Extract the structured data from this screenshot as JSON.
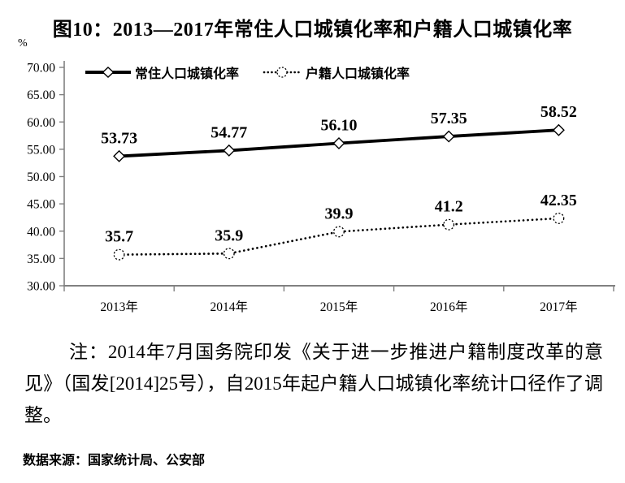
{
  "figure": {
    "note": "注：2014年7月国务院印发《关于进一步推进户籍制度改革的意见》（国发[2014]25号），自2015年起户籍人口城镇化率统计口径作了调整。",
    "source": "数据来源：国家统计局、公安部"
  },
  "chart_data": {
    "type": "line",
    "title": "图10：2013—2017年常住人口城镇化率和户籍人口城镇化率",
    "categories": [
      "2013年",
      "2014年",
      "2015年",
      "2016年",
      "2017年"
    ],
    "series": [
      {
        "name": "常住人口城镇化率",
        "values": [
          53.73,
          54.77,
          56.1,
          57.35,
          58.52
        ],
        "labels": [
          "53.73",
          "54.77",
          "56.10",
          "57.35",
          "58.52"
        ],
        "line_style": "solid",
        "marker": "diamond",
        "color": "#000000"
      },
      {
        "name": "户籍人口城镇化率",
        "values": [
          35.7,
          35.9,
          39.9,
          41.2,
          42.35
        ],
        "labels": [
          "35.7",
          "35.9",
          "39.9",
          "41.2",
          "42.35"
        ],
        "line_style": "dotted",
        "marker": "circle",
        "color": "#000000"
      }
    ],
    "xlabel": "",
    "ylabel": "%",
    "ylim": [
      30,
      70
    ],
    "ytick_step": 5,
    "ytick_labels": [
      "30.00",
      "35.00",
      "40.00",
      "45.00",
      "50.00",
      "55.00",
      "60.00",
      "65.00",
      "70.00"
    ],
    "grid": false,
    "legend_position": "top-left-inside",
    "axis_color": "#808080"
  }
}
